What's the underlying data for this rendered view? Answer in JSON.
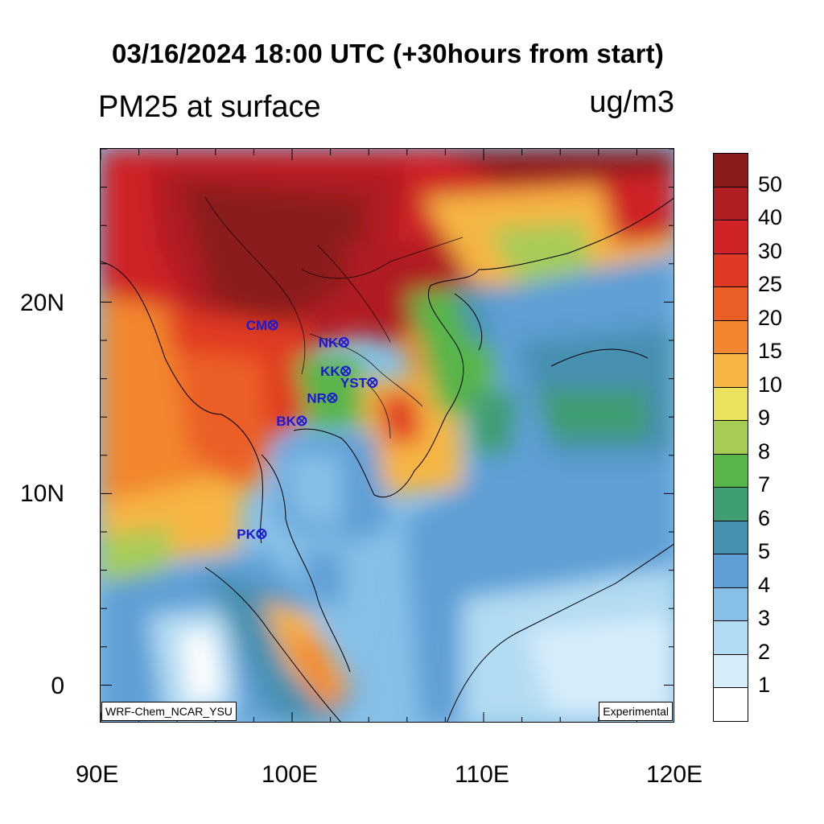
{
  "header": {
    "title": "03/16/2024 18:00 UTC (+30hours from start)",
    "left_title": "PM25 at surface",
    "units": "ug/m3"
  },
  "map": {
    "lon_range": [
      90,
      120
    ],
    "lat_range": [
      -2,
      28
    ],
    "lon_labels": [
      "90E",
      "100E",
      "110E",
      "120E"
    ],
    "lat_labels": [
      "20N",
      "10N",
      "0"
    ],
    "bottom_left_tag": "WRF-Chem_NCAR_YSU",
    "bottom_right_tag": "Experimental"
  },
  "stations": [
    {
      "code": "CM",
      "lon": 99.0,
      "lat": 18.8
    },
    {
      "code": "NK",
      "lon": 102.7,
      "lat": 17.9
    },
    {
      "code": "KK",
      "lon": 102.8,
      "lat": 16.4
    },
    {
      "code": "YST",
      "lon": 104.2,
      "lat": 15.8
    },
    {
      "code": "NR",
      "lon": 102.1,
      "lat": 15.0
    },
    {
      "code": "BK",
      "lon": 100.5,
      "lat": 13.8
    },
    {
      "code": "PK",
      "lon": 98.4,
      "lat": 7.9
    }
  ],
  "colorbar": {
    "levels": [
      "50",
      "40",
      "30",
      "25",
      "20",
      "15",
      "10",
      "9",
      "8",
      "7",
      "6",
      "5",
      "4",
      "3",
      "2",
      "1"
    ],
    "colors": [
      "#8b1a1a",
      "#b01e22",
      "#cf2327",
      "#e03a24",
      "#eb5e25",
      "#f2862e",
      "#f6b544",
      "#e8e35a",
      "#a6cc56",
      "#58b548",
      "#3f9e72",
      "#4690b0",
      "#5d9fd6",
      "#87bfe6",
      "#b2dcf3",
      "#d8edfa",
      "#ffffff"
    ]
  }
}
